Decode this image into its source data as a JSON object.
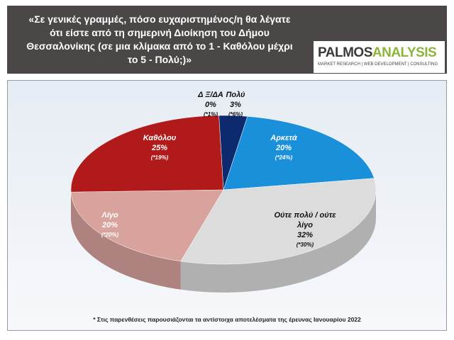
{
  "header": {
    "logo_left": "PALMOS",
    "logo_right": "ANALYSIS",
    "logo_tagline": "MARKET RESEARCH | WEB DEVELOPMENT | CONSULTING"
  },
  "chart_data": {
    "type": "pie",
    "title": "«Σε γενικές γραμμές, πόσο ευχαριστημένος/η θα λέγατε ότι είστε από τη σημερινή Διοίκηση του Δήμου Θεσσαλονίκης (σε μια κλίμακα από το 1 - Καθόλου μέχρι το 5 - Πολύ;)»",
    "categories": [
      "Δ Ξ/ΔΑ",
      "Πολύ",
      "Αρκετά",
      "Ούτε πολύ / ούτε λίγο",
      "Λίγο",
      "Καθόλου"
    ],
    "values": [
      0,
      3,
      20,
      32,
      20,
      25
    ],
    "value_labels": [
      "0%",
      "3%",
      "20%",
      "32%",
      "20%",
      "25%"
    ],
    "previous_labels": [
      "(*1%)",
      "(*6%)",
      "(*24%)",
      "(*30%)",
      "(*20%)",
      "(*19%)"
    ],
    "colors": [
      "#333333",
      "#0d2a6e",
      "#1a90da",
      "#dcdcdc",
      "#d9a39d",
      "#b01a1a"
    ],
    "footnote": "* Στις παρενθέσεις παρουσιάζονται τα αντίστοιχα αποτελέσματα της έρευνας Ιανουαρίου 2022"
  }
}
